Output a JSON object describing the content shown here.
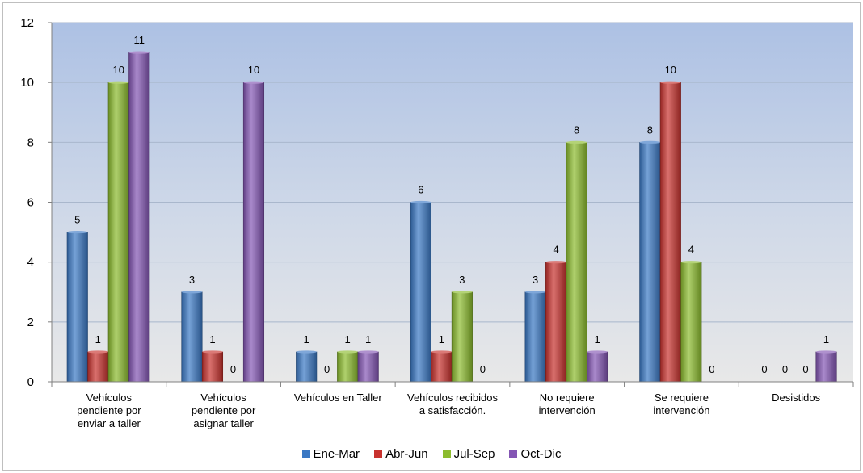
{
  "chart_data": {
    "type": "bar",
    "categories": [
      [
        "Vehículos",
        "pendiente por",
        "enviar a taller"
      ],
      [
        "Vehículos",
        "pendiente por",
        "asignar taller"
      ],
      [
        "Vehículos en Taller"
      ],
      [
        "Vehículos recibidos",
        "a satisfacción."
      ],
      [
        "No requiere",
        "intervención"
      ],
      [
        "Se requiere",
        "intervención"
      ],
      [
        "Desistidos"
      ]
    ],
    "series": [
      {
        "name": "Ene-Mar",
        "color": "#3a78c4",
        "values": [
          5,
          3,
          1,
          6,
          3,
          8,
          0
        ]
      },
      {
        "name": "Abr-Jun",
        "color": "#c8322e",
        "values": [
          1,
          1,
          0,
          1,
          4,
          10,
          0
        ]
      },
      {
        "name": "Jul-Sep",
        "color": "#8cbc2e",
        "values": [
          10,
          0,
          1,
          3,
          8,
          4,
          0
        ]
      },
      {
        "name": "Oct-Dic",
        "color": "#8456b4",
        "values": [
          11,
          10,
          1,
          0,
          1,
          0,
          1
        ]
      }
    ],
    "ylim": [
      0,
      12
    ],
    "yticks": [
      "0",
      "2",
      "4",
      "6",
      "8",
      "10",
      "12"
    ],
    "grid": true,
    "legend_position": "bottom",
    "title": "",
    "xlabel": "",
    "ylabel": ""
  }
}
